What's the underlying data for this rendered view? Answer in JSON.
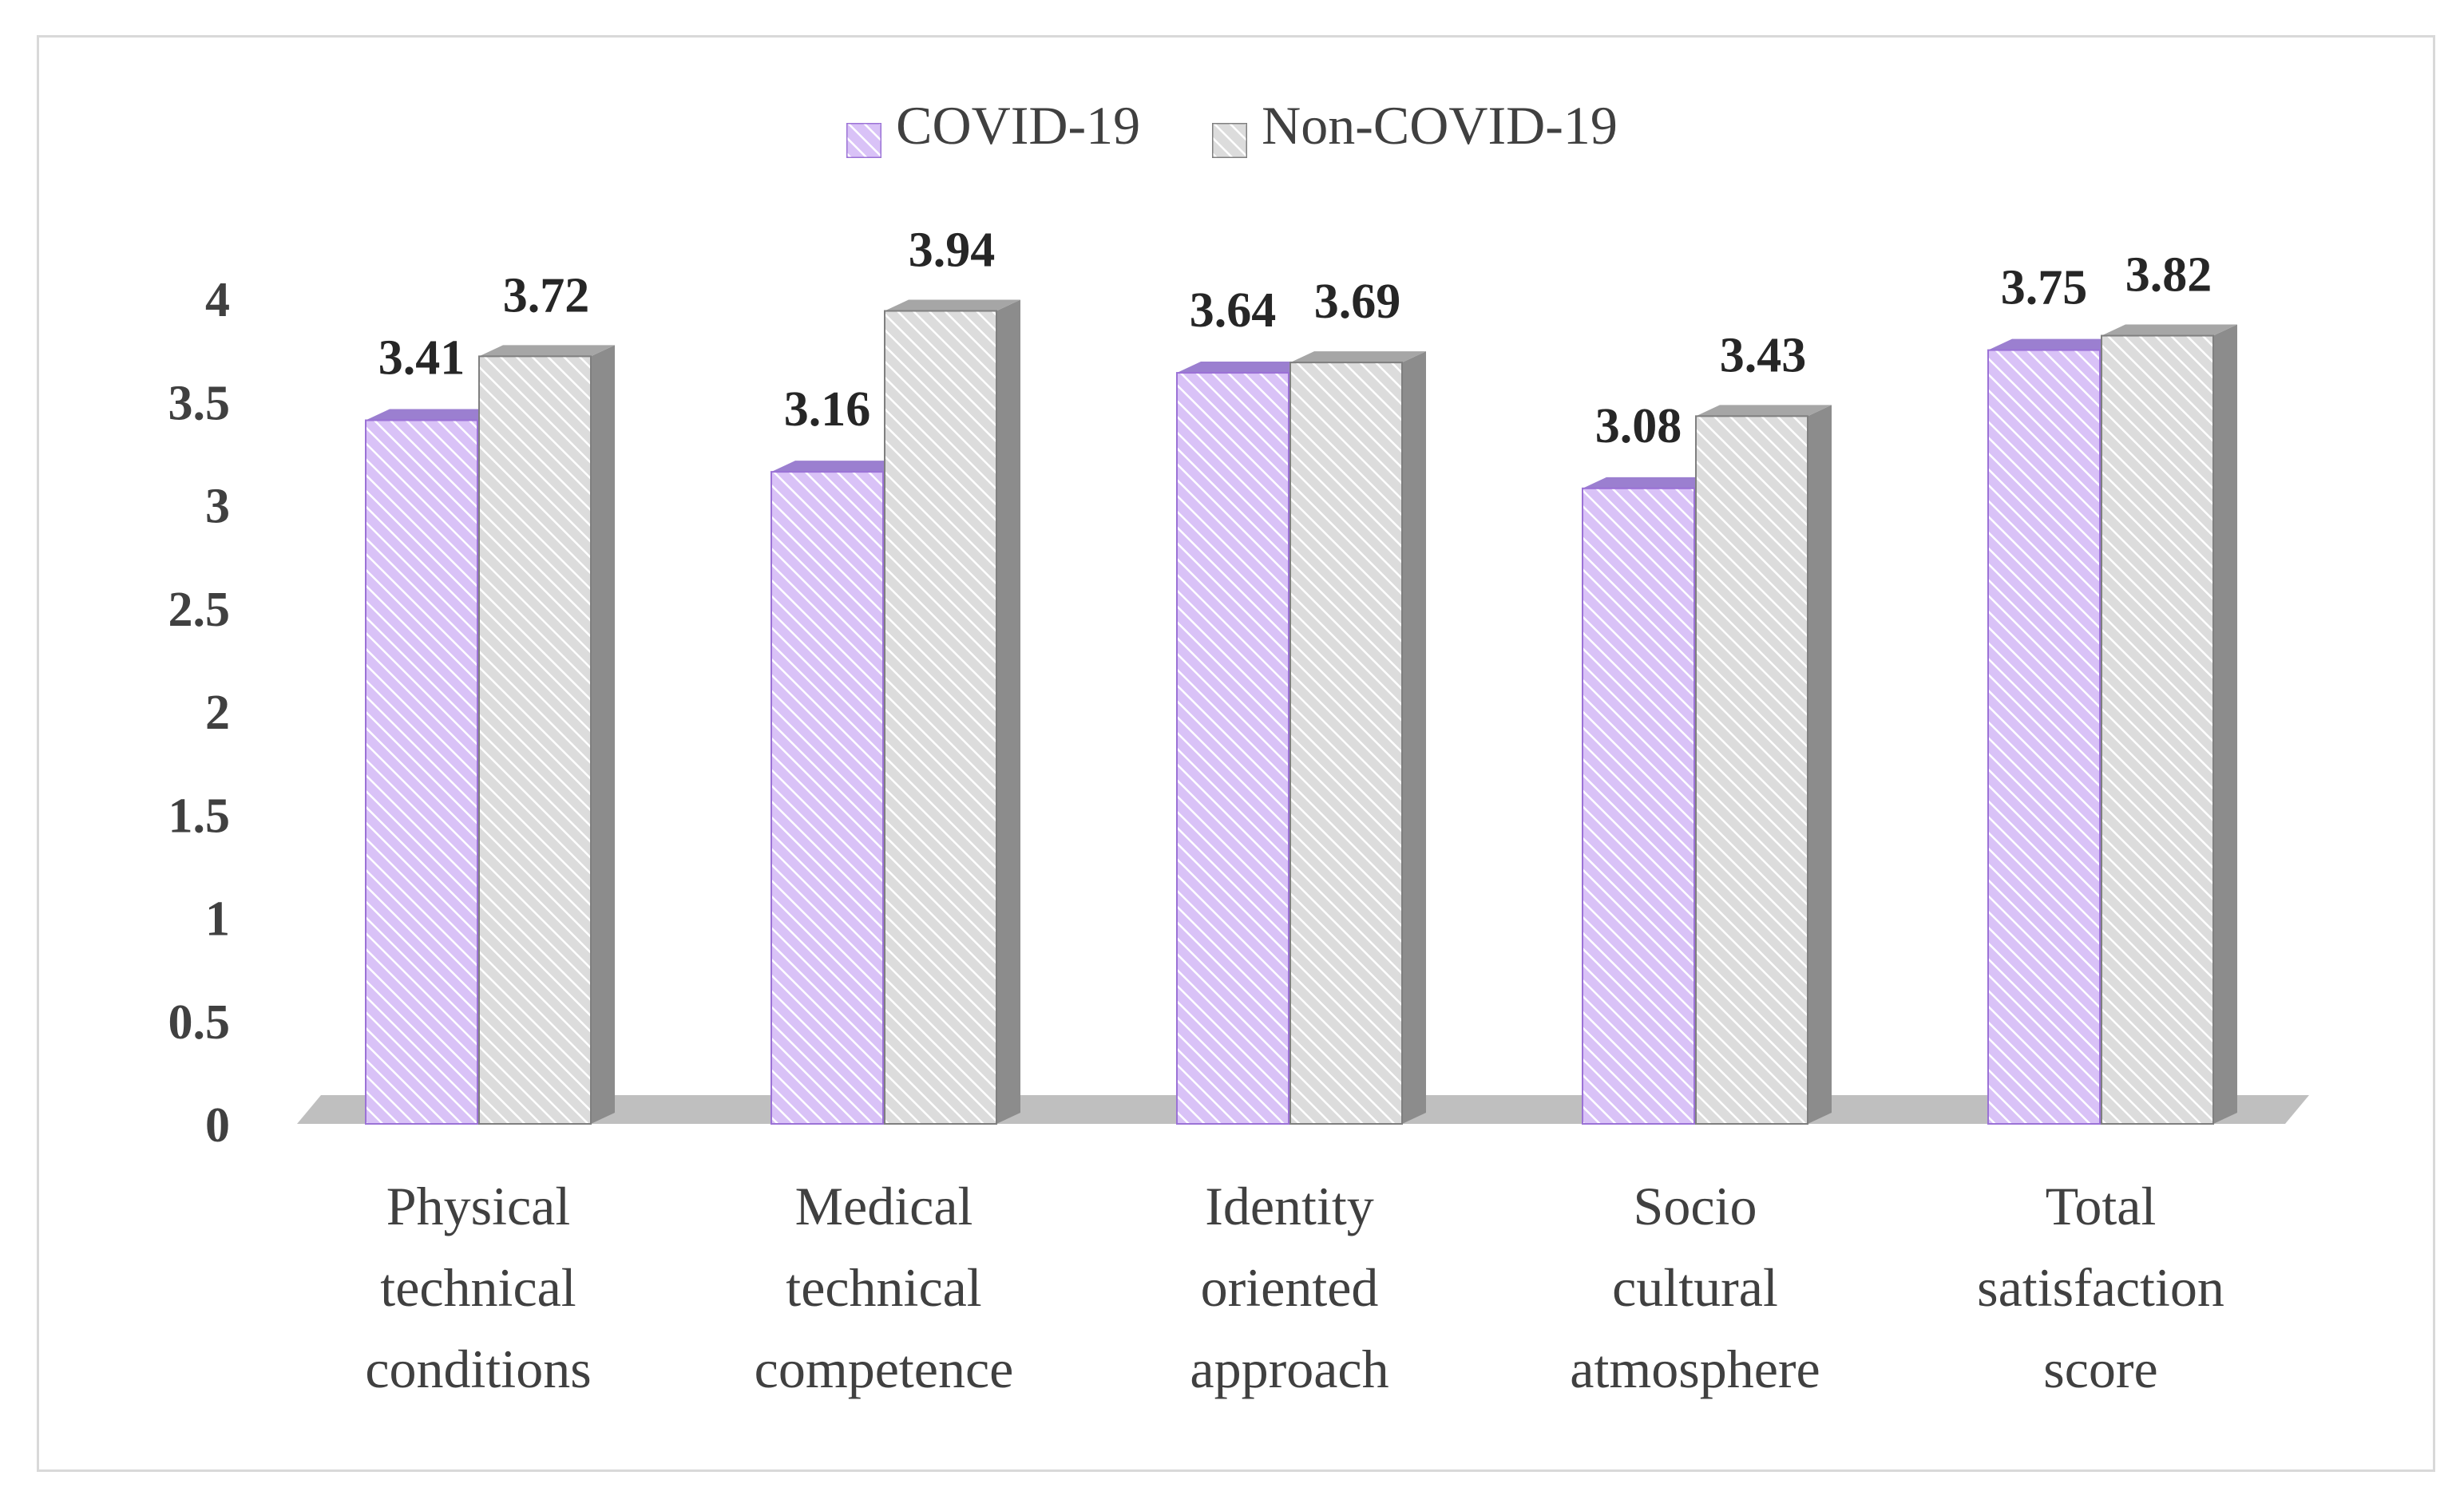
{
  "chart_data": {
    "type": "bar",
    "categories": [
      [
        "Physical",
        "technical",
        "conditions"
      ],
      [
        "Medical",
        "technical",
        "competence"
      ],
      [
        "Identity",
        "oriented",
        "approach"
      ],
      [
        "Socio",
        "cultural",
        "atmosphere"
      ],
      [
        "Total",
        "satisfaction",
        "score"
      ]
    ],
    "series": [
      {
        "name": "COVID-19",
        "values": [
          3.41,
          3.16,
          3.64,
          3.08,
          3.75
        ],
        "color": "#c9a8f2"
      },
      {
        "name": "Non-COVID-19",
        "values": [
          3.72,
          3.94,
          3.69,
          3.43,
          3.82
        ],
        "color": "#d0d0d0"
      }
    ],
    "value_labels": [
      [
        "3.41",
        "3.16",
        "3.64",
        "3.08",
        "3.75"
      ],
      [
        "3.72",
        "3.94",
        "3.69",
        "3.43",
        "3.82"
      ]
    ],
    "y_ticks": [
      "0",
      "0.5",
      "1",
      "1.5",
      "2",
      "2.5",
      "3",
      "3.5",
      "4"
    ],
    "ylim": [
      0,
      4
    ],
    "legend_position": "top-center",
    "grid": false,
    "style": "3d-hatched"
  }
}
